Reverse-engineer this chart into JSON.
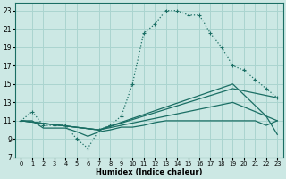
{
  "xlabel": "Humidex (Indice chaleur)",
  "background_color": "#cce8e4",
  "grid_color": "#aad4cf",
  "line_color": "#1a6e64",
  "xlim": [
    -0.5,
    23.5
  ],
  "ylim": [
    7,
    23.8
  ],
  "xticks": [
    0,
    1,
    2,
    3,
    4,
    5,
    6,
    7,
    8,
    9,
    10,
    11,
    12,
    13,
    14,
    15,
    16,
    17,
    18,
    19,
    20,
    21,
    22,
    23
  ],
  "yticks": [
    7,
    9,
    11,
    13,
    15,
    17,
    19,
    21,
    23
  ],
  "curve_main_x": [
    0,
    1,
    2,
    3,
    4,
    5,
    6,
    7,
    8,
    9,
    10,
    11,
    12,
    13,
    14,
    15,
    16,
    17,
    18,
    19,
    20,
    21,
    22,
    23
  ],
  "curve_main_y": [
    11,
    12,
    10.5,
    10.5,
    10.5,
    9,
    8,
    10,
    10.5,
    11.5,
    15,
    20.5,
    21.5,
    23,
    23,
    22.5,
    22.5,
    20.5,
    19,
    17,
    16.5,
    15.5,
    14.5,
    13.5
  ],
  "curve_flat_x": [
    0,
    1,
    2,
    3,
    4,
    5,
    6,
    7,
    8,
    9,
    10,
    11,
    12,
    13,
    14,
    15,
    16,
    17,
    18,
    19,
    20,
    21,
    22,
    23
  ],
  "curve_flat_y": [
    11,
    11,
    10.2,
    10.2,
    10.2,
    9.8,
    9.3,
    9.8,
    10,
    10.3,
    10.3,
    10.5,
    10.8,
    11,
    11,
    11,
    11,
    11,
    11,
    11,
    11,
    11,
    10.5,
    11
  ],
  "curve_line1_x": [
    0,
    7,
    19,
    22,
    23
  ],
  "curve_line1_y": [
    11,
    10,
    15,
    11.5,
    11
  ],
  "curve_line2_x": [
    0,
    7,
    19,
    23
  ],
  "curve_line2_y": [
    11,
    10,
    14.5,
    13.5
  ],
  "curve_line3_x": [
    0,
    7,
    19,
    22,
    23
  ],
  "curve_line3_y": [
    11,
    10,
    13,
    11.5,
    9.5
  ]
}
